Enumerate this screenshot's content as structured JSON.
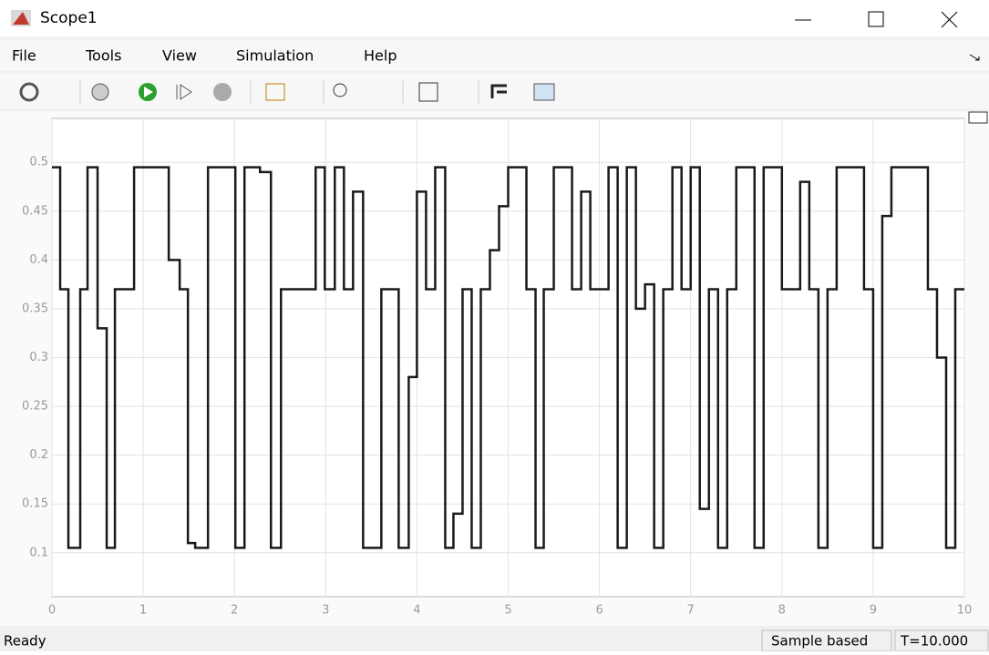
{
  "window": {
    "title": "Scope1"
  },
  "menu": [
    "File",
    "Tools",
    "View",
    "Simulation",
    "Help"
  ],
  "status": {
    "text": "Ready",
    "mode": "Sample based",
    "time": "T=10.000"
  },
  "chart_data": {
    "type": "line",
    "step": "post",
    "grid": true,
    "x": [
      0,
      0.09,
      0.18,
      0.31,
      0.39,
      0.5,
      0.6,
      0.69,
      0.9,
      1.28,
      1.4,
      1.49,
      1.57,
      1.71,
      2.01,
      2.11,
      2.28,
      2.4,
      2.51,
      2.89,
      2.99,
      3.1,
      3.2,
      3.3,
      3.41,
      3.61,
      3.8,
      3.91,
      4.0,
      4.1,
      4.2,
      4.31,
      4.4,
      4.5,
      4.6,
      4.7,
      4.8,
      4.9,
      5.0,
      5.2,
      5.3,
      5.39,
      5.5,
      5.7,
      5.8,
      5.9,
      6.1,
      6.2,
      6.3,
      6.4,
      6.5,
      6.6,
      6.7,
      6.8,
      6.9,
      7.0,
      7.1,
      7.2,
      7.3,
      7.4,
      7.5,
      7.7,
      7.8,
      8.0,
      8.2,
      8.3,
      8.4,
      8.5,
      8.6,
      8.9,
      9.0,
      9.1,
      9.2,
      9.6,
      9.7,
      9.8,
      9.9,
      10
    ],
    "series": [
      {
        "color": "#1a1a1a",
        "values": [
          0.495,
          0.37,
          0.105,
          0.37,
          0.495,
          0.33,
          0.105,
          0.37,
          0.495,
          0.4,
          0.37,
          0.11,
          0.105,
          0.495,
          0.105,
          0.495,
          0.49,
          0.105,
          0.37,
          0.495,
          0.37,
          0.495,
          0.37,
          0.47,
          0.105,
          0.37,
          0.105,
          0.28,
          0.47,
          0.37,
          0.495,
          0.105,
          0.14,
          0.37,
          0.105,
          0.37,
          0.41,
          0.455,
          0.495,
          0.37,
          0.105,
          0.37,
          0.495,
          0.37,
          0.47,
          0.37,
          0.495,
          0.105,
          0.495,
          0.35,
          0.375,
          0.105,
          0.37,
          0.495,
          0.37,
          0.495,
          0.145,
          0.37,
          0.105,
          0.37,
          0.495,
          0.105,
          0.495,
          0.37,
          0.48,
          0.37,
          0.105,
          0.37,
          0.495,
          0.37,
          0.105,
          0.445,
          0.495,
          0.37,
          0.3,
          0.105,
          0.37,
          0.37
        ]
      }
    ],
    "xlim": [
      0,
      10
    ],
    "ylim": [
      0.055,
      0.545
    ],
    "xticks": [
      0,
      1,
      2,
      3,
      4,
      5,
      6,
      7,
      8,
      9,
      10
    ],
    "yticks": [
      0.1,
      0.15,
      0.2,
      0.25,
      0.3,
      0.35,
      0.4,
      0.45,
      0.5
    ]
  }
}
